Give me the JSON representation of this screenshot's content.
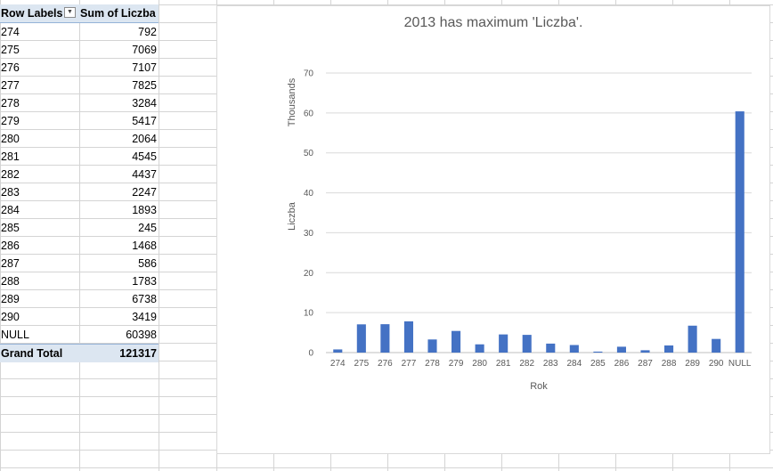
{
  "pivot": {
    "header": {
      "row_labels": "Row Labels",
      "sum_label": "Sum of Liczba"
    },
    "rows": [
      {
        "label": "274",
        "value": "792"
      },
      {
        "label": "275",
        "value": "7069"
      },
      {
        "label": "276",
        "value": "7107"
      },
      {
        "label": "277",
        "value": "7825"
      },
      {
        "label": "278",
        "value": "3284"
      },
      {
        "label": "279",
        "value": "5417"
      },
      {
        "label": "280",
        "value": "2064"
      },
      {
        "label": "281",
        "value": "4545"
      },
      {
        "label": "282",
        "value": "4437"
      },
      {
        "label": "283",
        "value": "2247"
      },
      {
        "label": "284",
        "value": "1893"
      },
      {
        "label": "285",
        "value": "245"
      },
      {
        "label": "286",
        "value": "1468"
      },
      {
        "label": "287",
        "value": "586"
      },
      {
        "label": "288",
        "value": "1783"
      },
      {
        "label": "289",
        "value": "6738"
      },
      {
        "label": "290",
        "value": "3419"
      },
      {
        "label": "NULL",
        "value": "60398"
      }
    ],
    "total": {
      "label": "Grand Total",
      "value": "121317"
    }
  },
  "chart_data": {
    "type": "bar",
    "title": "2013 has maximum 'Liczba'.",
    "xlabel": "Rok",
    "ylabel": "Liczba",
    "display_units": "Thousands",
    "categories": [
      "274",
      "275",
      "276",
      "277",
      "278",
      "279",
      "280",
      "281",
      "282",
      "283",
      "284",
      "285",
      "286",
      "287",
      "288",
      "289",
      "290",
      "NULL"
    ],
    "values": [
      792,
      7069,
      7107,
      7825,
      3284,
      5417,
      2064,
      4545,
      4437,
      2247,
      1893,
      245,
      1468,
      586,
      1783,
      6738,
      3419,
      60398
    ],
    "yticks": [
      "0",
      "10",
      "20",
      "30",
      "40",
      "50",
      "60",
      "70"
    ],
    "ylim": [
      0,
      70000
    ],
    "grid": true,
    "bar_color": "#4472c4"
  }
}
